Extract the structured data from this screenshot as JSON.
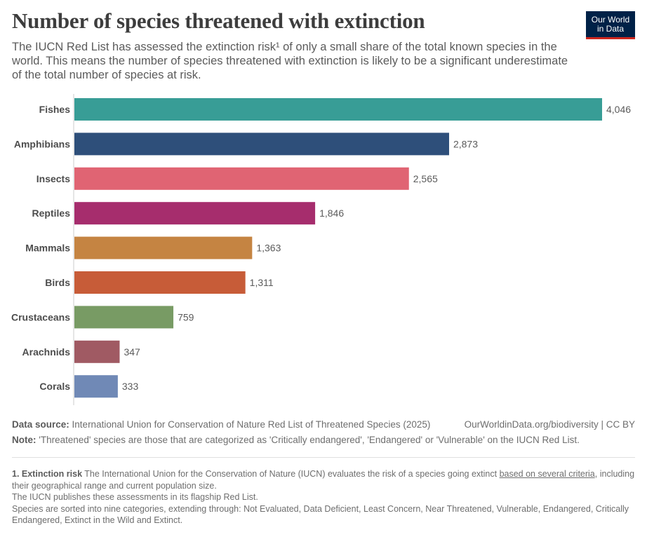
{
  "title": "Number of species threatened with extinction",
  "subtitle": "The IUCN Red List has assessed the extinction risk¹ of only a small share of the total known species in the world. This means the number of species threatened with extinction is likely to be a significant underestimate of the total number of species at risk.",
  "logo": {
    "line1": "Our World",
    "line2": "in Data",
    "bg_color": "#002147",
    "accent_color": "#ce261e"
  },
  "chart_data": {
    "type": "bar",
    "orientation": "horizontal",
    "categories": [
      "Fishes",
      "Amphibians",
      "Insects",
      "Reptiles",
      "Mammals",
      "Birds",
      "Crustaceans",
      "Arachnids",
      "Corals"
    ],
    "values": [
      4046,
      2873,
      2565,
      1846,
      1363,
      1311,
      759,
      347,
      333
    ],
    "value_labels": [
      "4,046",
      "2,873",
      "2,565",
      "1,846",
      "1,363",
      "1,311",
      "759",
      "347",
      "333"
    ],
    "colors": [
      "#389d96",
      "#2e4f7a",
      "#e06473",
      "#a62d6d",
      "#c58442",
      "#c75c38",
      "#789b64",
      "#a05a63",
      "#7089b6"
    ],
    "xlim": [
      0,
      4046
    ],
    "grid": false,
    "xlabel": "",
    "ylabel": ""
  },
  "footer": {
    "source_label": "Data source:",
    "source_text": "International Union for Conservation of Nature Red List of Threatened Species (2025)",
    "url": "OurWorldinData.org/biodiversity | CC BY",
    "note_label": "Note:",
    "note_text": "'Threatened' species are those that are categorized as 'Critically endangered', 'Endangered' or 'Vulnerable' on the IUCN Red List."
  },
  "footnote": {
    "label": "1. Extinction risk",
    "text1": "The International Union for the Conservation of Nature (IUCN) evaluates the risk of a species going extinct",
    "link": "based on several criteria",
    "text2": ", including their geographical range and current population size.",
    "line2": "The IUCN publishes these assessments in its flagship Red List.",
    "line3": "Species are sorted into nine categories, extending through: Not Evaluated, Data Deficient, Least Concern, Near Threatened, Vulnerable, Endangered, Critically Endangered, Extinct in the Wild and Extinct."
  }
}
